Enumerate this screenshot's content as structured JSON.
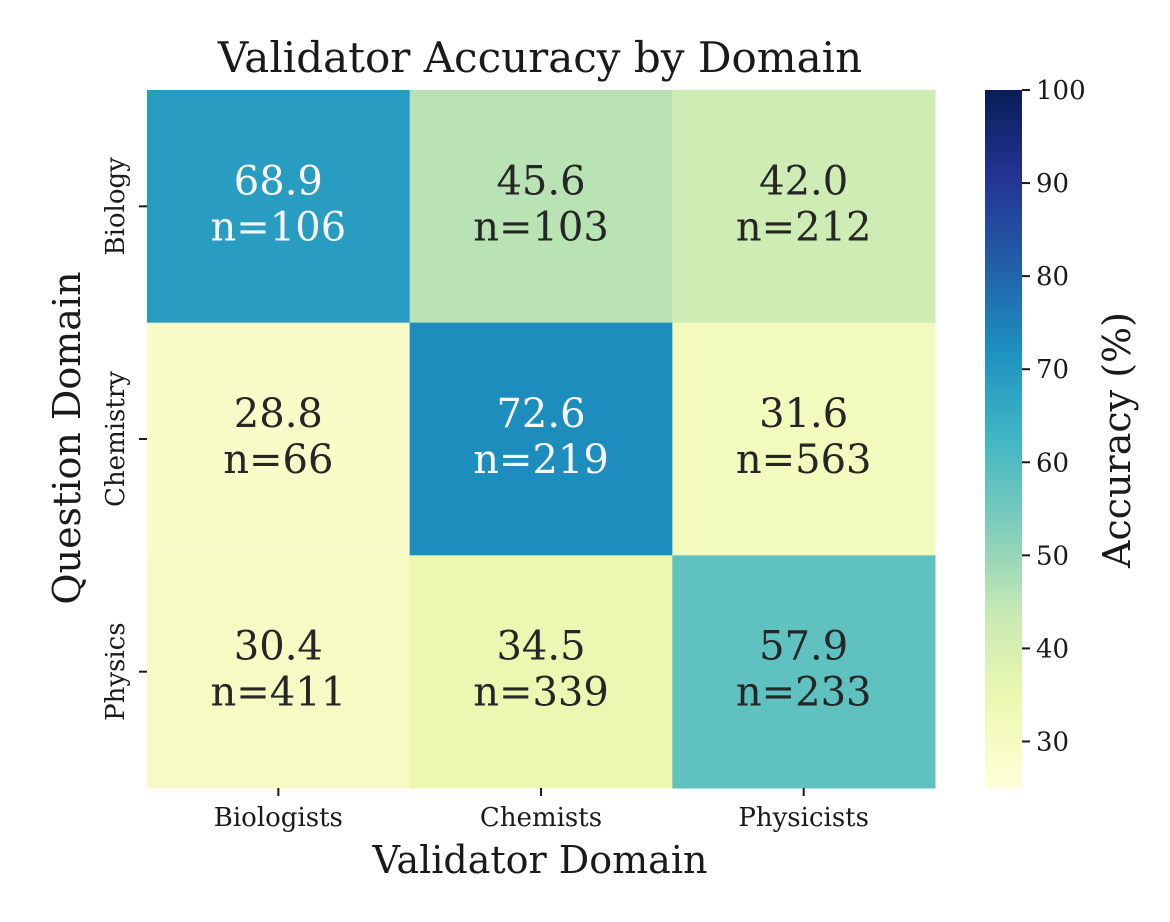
{
  "chart_data": {
    "type": "heatmap",
    "title": "Validator Accuracy by Domain",
    "xlabel": "Validator Domain",
    "ylabel": "Question Domain",
    "x_categories": [
      "Biologists",
      "Chemists",
      "Physicists"
    ],
    "y_categories": [
      "Biology",
      "Chemistry",
      "Physics"
    ],
    "values": [
      [
        68.9,
        45.6,
        42.0
      ],
      [
        28.8,
        72.6,
        31.6
      ],
      [
        30.4,
        34.5,
        57.9
      ]
    ],
    "value_labels": [
      [
        "68.9",
        "45.6",
        "42.0"
      ],
      [
        "28.8",
        "72.6",
        "31.6"
      ],
      [
        "30.4",
        "34.5",
        "57.9"
      ]
    ],
    "counts": [
      [
        "n=106",
        "n=103",
        "n=212"
      ],
      [
        "n=66",
        "n=219",
        "n=563"
      ],
      [
        "n=411",
        "n=339",
        "n=233"
      ]
    ],
    "colorbar": {
      "label": "Accuracy (%)",
      "range": [
        25,
        100
      ],
      "ticks": [
        30,
        40,
        50,
        60,
        70,
        80,
        90,
        100
      ],
      "tick_labels": [
        "30",
        "40",
        "50",
        "60",
        "70",
        "80",
        "90",
        "100"
      ],
      "colormap": "YlGnBu",
      "colors": [
        "#ffffd9",
        "#edf8b1",
        "#c7e9b4",
        "#7fcdbb",
        "#41b6c4",
        "#1d91c0",
        "#225ea8",
        "#253494",
        "#081d58"
      ]
    },
    "grid": false
  }
}
